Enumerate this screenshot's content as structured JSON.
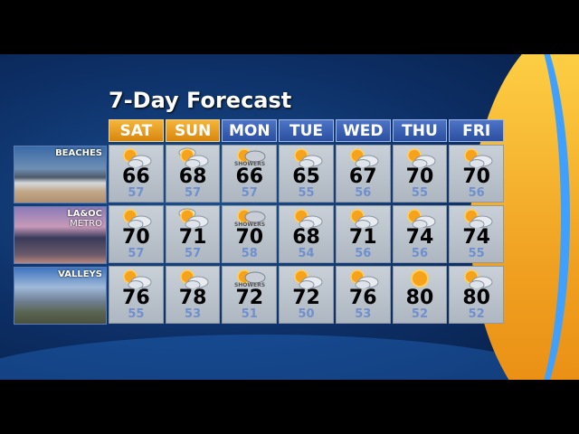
{
  "title": "7-Day Forecast",
  "days": [
    {
      "label": "SAT",
      "weekend": true
    },
    {
      "label": "SUN",
      "weekend": true
    },
    {
      "label": "MON",
      "weekend": false
    },
    {
      "label": "TUE",
      "weekend": false
    },
    {
      "label": "WED",
      "weekend": false
    },
    {
      "label": "THU",
      "weekend": false
    },
    {
      "label": "FRI",
      "weekend": false
    }
  ],
  "regions": [
    {
      "name": "BEACHES",
      "name2": "",
      "highs": [
        "66",
        "68",
        "66",
        "65",
        "67",
        "70",
        "70"
      ],
      "lows": [
        "57",
        "57",
        "57",
        "55",
        "56",
        "55",
        "56"
      ],
      "icons": [
        "partly-cloudy",
        "mostly-cloudy",
        "showers",
        "partly-cloudy",
        "partly-cloudy",
        "partly-cloudy",
        "partly-cloudy"
      ]
    },
    {
      "name": "LA&OC",
      "name2": "METRO",
      "highs": [
        "70",
        "71",
        "70",
        "68",
        "71",
        "74",
        "74"
      ],
      "lows": [
        "57",
        "57",
        "58",
        "54",
        "56",
        "56",
        "55"
      ],
      "icons": [
        "partly-cloudy",
        "mostly-cloudy",
        "showers",
        "partly-cloudy",
        "partly-cloudy",
        "partly-cloudy",
        "partly-cloudy"
      ]
    },
    {
      "name": "VALLEYS",
      "name2": "",
      "highs": [
        "76",
        "78",
        "72",
        "72",
        "76",
        "80",
        "80"
      ],
      "lows": [
        "55",
        "53",
        "51",
        "50",
        "53",
        "52",
        "52"
      ],
      "icons": [
        "partly-cloudy",
        "partly-cloudy",
        "showers",
        "partly-cloudy",
        "partly-cloudy",
        "sunny",
        "partly-cloudy"
      ]
    }
  ],
  "showers_label": "SHOWERS",
  "colors": {
    "weekend": "#e9a020",
    "weekday": "#3a60b5",
    "low_temp": "#6f8fcf"
  }
}
